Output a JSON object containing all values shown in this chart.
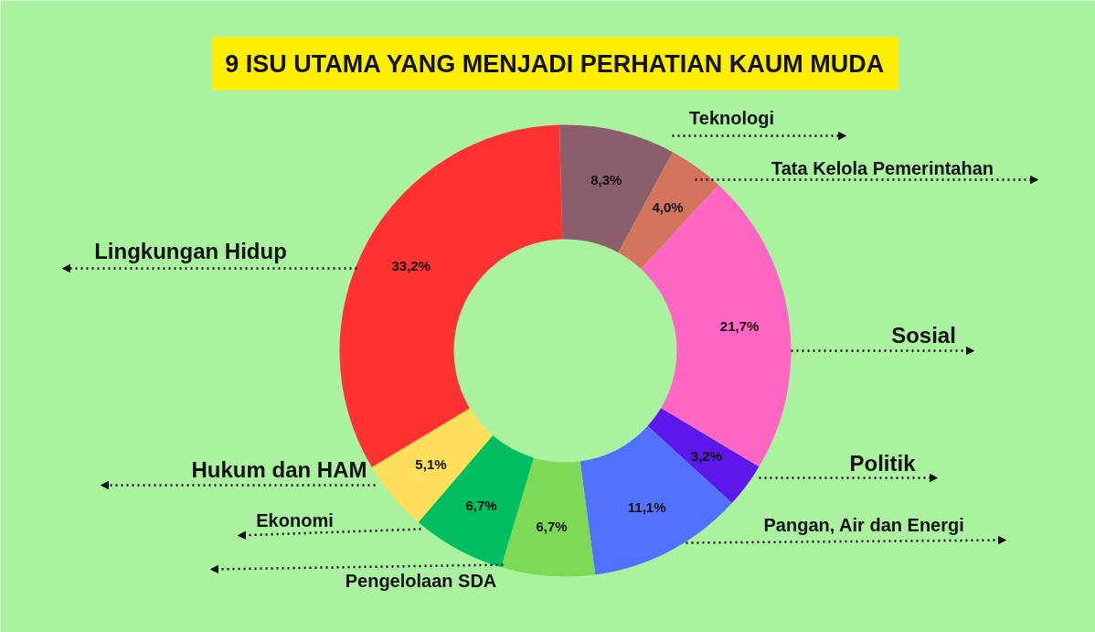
{
  "chart_data": {
    "type": "donut",
    "title": "9 ISU UTAMA YANG MENJADI PERHATIAN KAUM MUDA",
    "categories": [
      "Teknologi",
      "Tata Kelola Pemerintahan",
      "Sosial",
      "Politik",
      "Pangan, Air dan Energi",
      "Pengelolaan SDA",
      "Ekonomi",
      "Hukum dan HAM",
      "Lingkungan Hidup"
    ],
    "values": [
      8.3,
      4.0,
      21.7,
      3.2,
      11.1,
      6.7,
      6.7,
      5.1,
      33.2
    ],
    "value_labels": [
      "8,3%",
      "4,0%",
      "21,7%",
      "3,2%",
      "11,1%",
      "6,7%",
      "6,7%",
      "5,1%",
      "33,2%"
    ],
    "colors": [
      "#8b5e6b",
      "#d4735e",
      "#ff66c4",
      "#5e17eb",
      "#5271ff",
      "#7ed957",
      "#00bf63",
      "#ffde59",
      "#ff3131"
    ]
  }
}
